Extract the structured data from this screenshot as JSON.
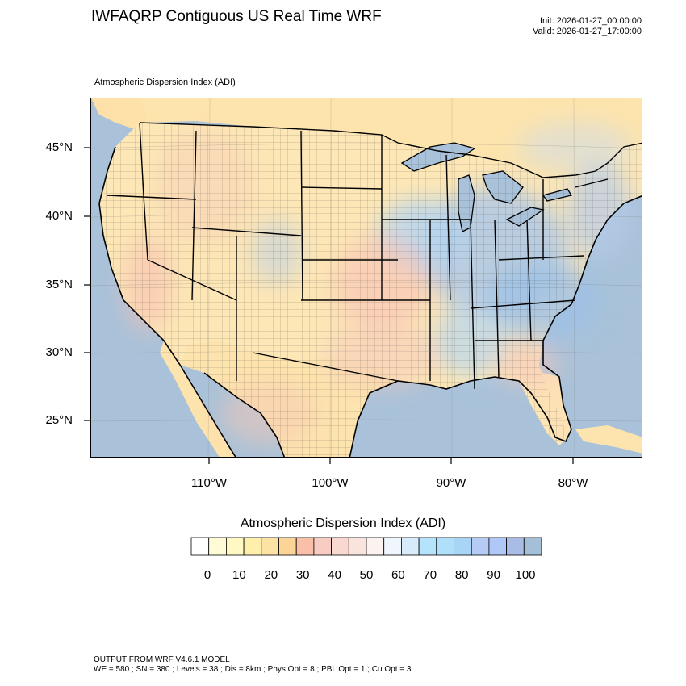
{
  "header": {
    "title": "IWFAQRP Contiguous US Real Time WRF",
    "init": "Init: 2026-01-27_00:00:00",
    "valid": "Valid: 2026-01-27_17:00:00"
  },
  "map": {
    "subtitle": "Atmospheric Dispersion Index   (ADI)",
    "lat_labels": [
      "45°N",
      "40°N",
      "35°N",
      "30°N",
      "25°N"
    ],
    "lon_labels": [
      "110°W",
      "100°W",
      "90°W",
      "80°W"
    ],
    "colors": {
      "ocean": "#a9c2d9",
      "land_base": "#fde7b6",
      "high_adi": "#9fc3ea",
      "low_adi": "#f8c6b8"
    }
  },
  "colorbar": {
    "title": "Atmospheric Dispersion Index  (ADI)",
    "labels": [
      "0",
      "10",
      "20",
      "30",
      "40",
      "50",
      "60",
      "70",
      "80",
      "90",
      "100"
    ],
    "colors": [
      "#ffffff",
      "#fffbd6",
      "#fff8c3",
      "#fef0ab",
      "#fde3a3",
      "#fcd496",
      "#f9bfa8",
      "#f8ccc3",
      "#f8d8d0",
      "#f8e4dc",
      "#fcf2f0",
      "#f0f6fd",
      "#d7ebfb",
      "#b5e3fb",
      "#b0dffa",
      "#a8d4f5",
      "#b5cbf5",
      "#b0c8f8",
      "#a9bce6",
      "#a4bfd8"
    ]
  },
  "footer": {
    "line1": "OUTPUT FROM WRF V4.6.1 MODEL",
    "line2": "WE = 580 ; SN = 380 ; Levels = 38 ; Dis = 8km ; Phys Opt = 8 ; PBL Opt = 1 ; Cu Opt = 3"
  }
}
